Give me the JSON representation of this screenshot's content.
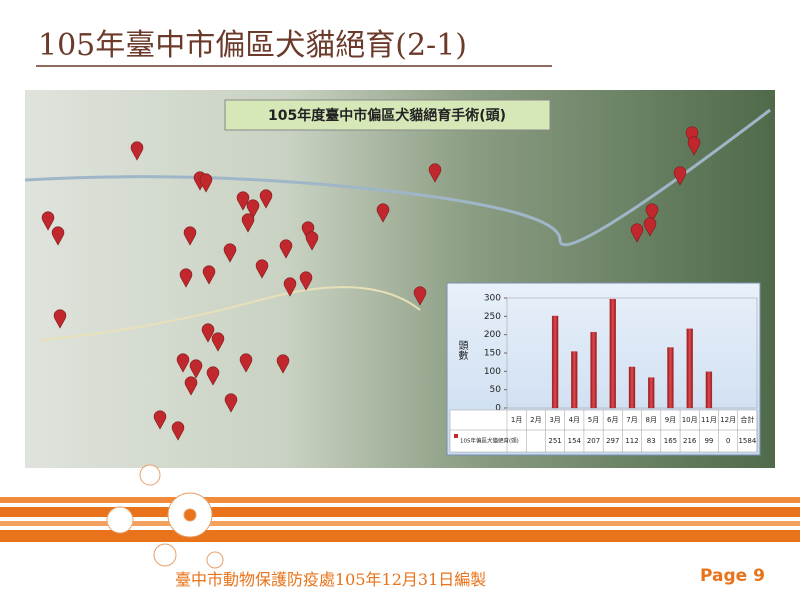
{
  "title": "105年臺中市偏區犬貓絕育(2-1)",
  "map_title": "105年度臺中市偏區犬貓絕育手術(頭)",
  "chart_data": {
    "type": "bar",
    "y_label": "頭數",
    "categories": [
      "1月",
      "2月",
      "3月",
      "4月",
      "5月",
      "6月",
      "7月",
      "8月",
      "9月",
      "10月",
      "11月",
      "12月"
    ],
    "series": [
      {
        "name": "105年偏區犬貓絕育(頭)",
        "color": "#c0282d",
        "values": [
          null,
          null,
          251,
          154,
          207,
          297,
          112,
          83,
          165,
          216,
          99,
          0
        ]
      }
    ],
    "total_label": "合計",
    "total": 1584,
    "ylim": [
      0,
      300
    ],
    "yticks": [
      0,
      50,
      100,
      150,
      200,
      250,
      300
    ]
  },
  "footer": "臺中市動物保護防疫處105年12月31日編製",
  "page": "Page 9"
}
